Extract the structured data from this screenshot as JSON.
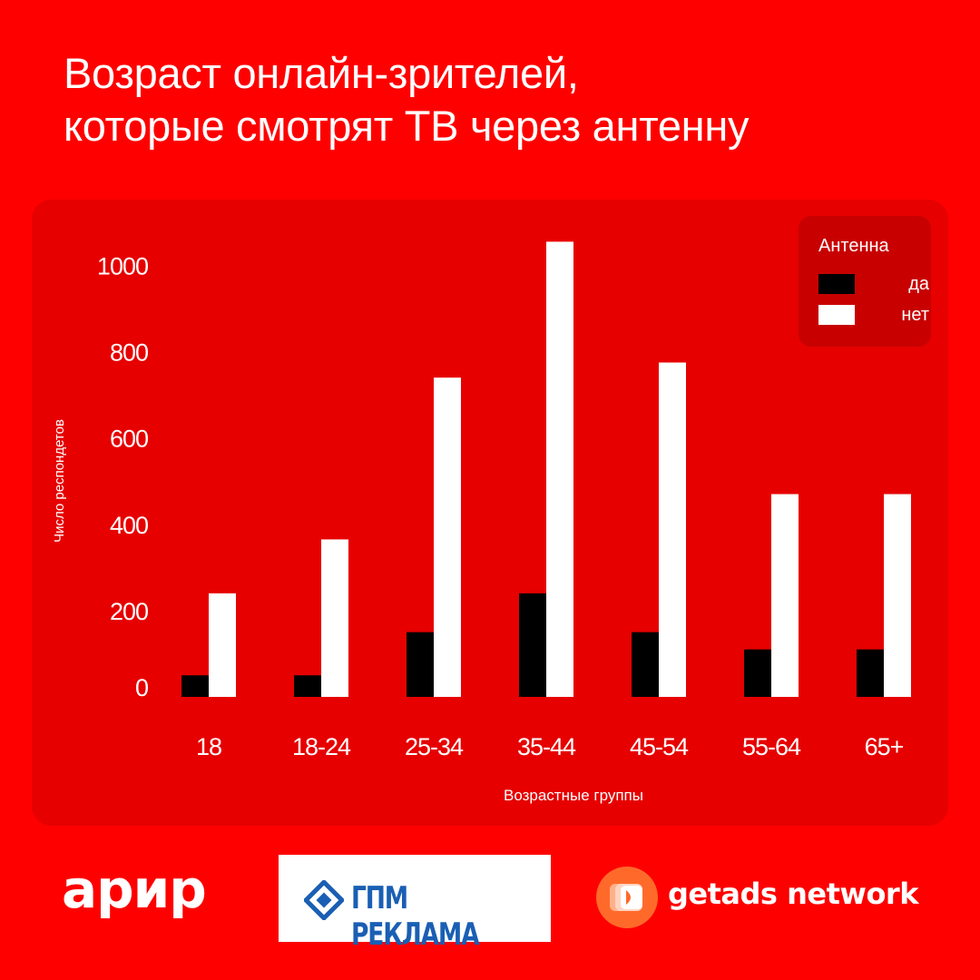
{
  "title": {
    "line1": "Возраст онлайн-зрителей,",
    "line2": "которые смотрят ТВ через антенну"
  },
  "chart_data": {
    "type": "bar",
    "categories": [
      "18",
      "18-24",
      "25-34",
      "35-44",
      "45-54",
      "55-64",
      "65+"
    ],
    "series": [
      {
        "name": "да",
        "values": [
          50,
          50,
          150,
          240,
          150,
          110,
          110
        ],
        "color": "#000000"
      },
      {
        "name": "нет",
        "values": [
          240,
          365,
          740,
          1055,
          775,
          470,
          470
        ],
        "color": "#ffffff"
      }
    ],
    "xlabel": "Возрастные группы",
    "ylabel": "Число респондетов",
    "yticks": [
      0,
      200,
      400,
      600,
      800,
      1000
    ],
    "ylim": [
      0,
      1060
    ],
    "legend_title": "Антенна",
    "legend_position": "top-right",
    "grid": false
  },
  "logos": {
    "arir": "арир",
    "gpm": "ГПМ РЕКЛАМА",
    "getads": "getads network"
  },
  "colors": {
    "background": "#ff0000",
    "panel": "#e60000",
    "legend_bg": "#c80000",
    "gpm_blue": "#1a5fb4",
    "getads_orange": "#ff6a2a"
  }
}
